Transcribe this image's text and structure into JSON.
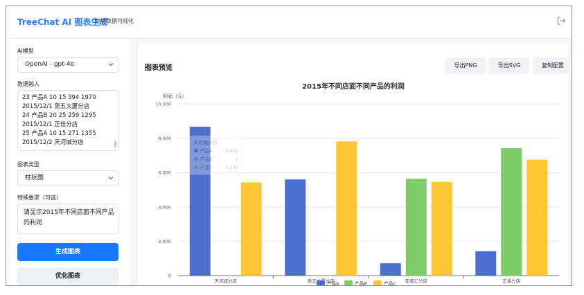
{
  "app": {
    "brand": "TreeChat AI 图表生成",
    "subtitle": "智能数据可视化"
  },
  "sidebar": {
    "model_label": "AI模型",
    "model_value": "OpenAI - gpt-4o",
    "data_label": "数据输入",
    "data_lines": [
      "23   产品A  10   15   394  1970",
      "2015/12/1   第五大厦分店",
      "24   产品B  20   25   259  1295",
      "2015/12/1   正佳分店",
      "25   产品A  10   15   271  1355",
      "2015/12/2   天河城分店"
    ],
    "chart_type_label": "图表类型",
    "chart_type_value": "柱状图",
    "req_label": "特殊要求（可选）",
    "req_lines": [
      "请显示2015年不同店面不同产品",
      "的利润"
    ],
    "generate_label": "生成图表",
    "optimize_label": "优化图表"
  },
  "preview": {
    "title": "图表预览",
    "export_png": "导出PNG",
    "export_svg": "导出SVG",
    "copy_config": "复制配置"
  },
  "colors": {
    "seriesA": "#4a6fcf",
    "seriesB": "#7fcc6a",
    "seriesC": "#ffc534",
    "accent": "#1677ff"
  },
  "chart_data": {
    "type": "bar",
    "title": "2015年不同店面不同产品的利润",
    "ylabel": "利润（元）",
    "xlabel": "",
    "ylim": [
      0,
      10000
    ],
    "yticks": [
      "0",
      "2,000",
      "4,000",
      "6,000",
      "8,000",
      "10,000"
    ],
    "ytick_values": [
      0,
      2000,
      4000,
      6000,
      8000,
      10000
    ],
    "categories": [
      "天河城分店",
      "第五大厦分店",
      "花城汇分店",
      "正佳分店"
    ],
    "series": [
      {
        "name": "产品A",
        "values": [
          8670,
          5600,
          720,
          1420
        ]
      },
      {
        "name": "产品B",
        "values": [
          0,
          0,
          5640,
          7420
        ]
      },
      {
        "name": "产品C",
        "values": [
          5430,
          7820,
          5450,
          6750
        ]
      }
    ],
    "legend": "bottom",
    "grid": true,
    "tooltip": {
      "title": "天河城分店",
      "rows": [
        {
          "name": "产品A",
          "value": "8,670"
        },
        {
          "name": "产品B",
          "value": "0"
        },
        {
          "name": "产品C",
          "value": "5,430"
        }
      ]
    }
  }
}
